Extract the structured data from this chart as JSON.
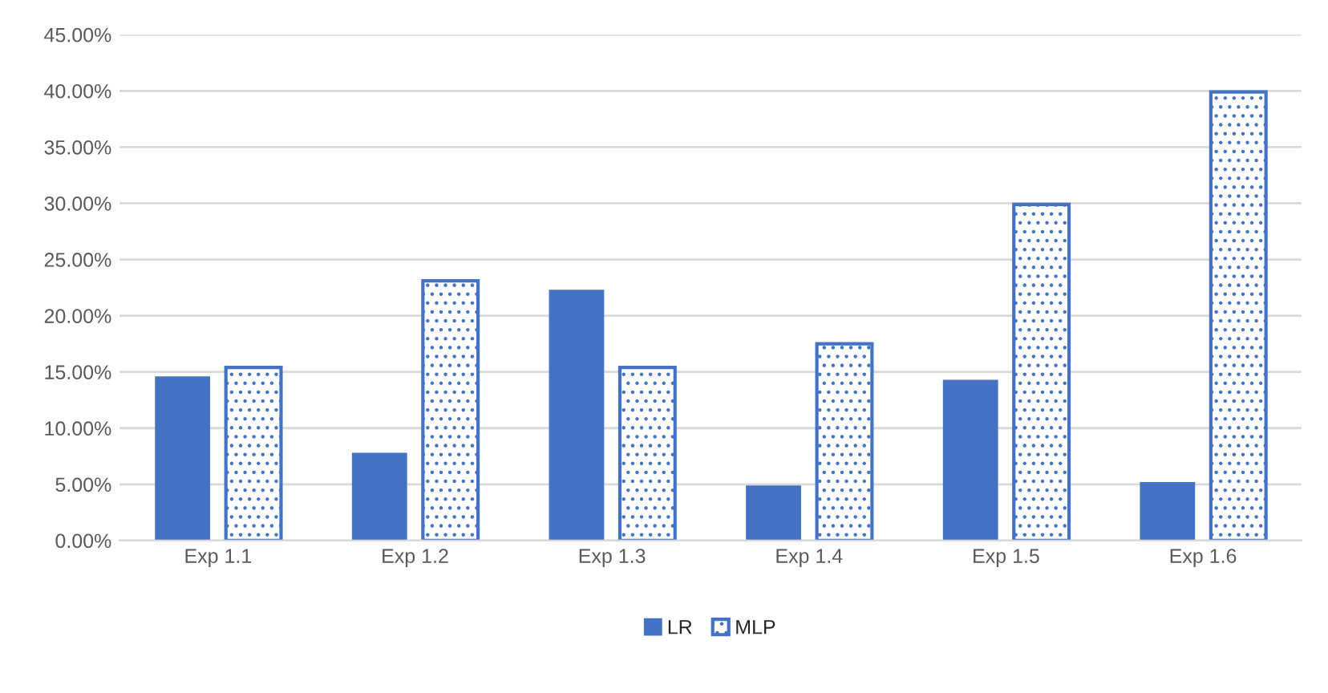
{
  "chart_data": {
    "type": "bar",
    "categories": [
      "Exp 1.1",
      "Exp 1.2",
      "Exp 1.3",
      "Exp 1.4",
      "Exp 1.5",
      "Exp 1.6"
    ],
    "series": [
      {
        "name": "LR",
        "color": "#4472c4",
        "values": [
          14.6,
          7.8,
          22.3,
          4.9,
          14.3,
          5.2
        ]
      },
      {
        "name": "MLP",
        "color": "#4472c4",
        "values": [
          15.4,
          23.1,
          15.4,
          17.5,
          29.9,
          39.9
        ]
      }
    ],
    "ylim": [
      0,
      45
    ],
    "yticks": [
      {
        "value": 0,
        "label": "0.00%"
      },
      {
        "value": 5,
        "label": "5.00%"
      },
      {
        "value": 10,
        "label": "10.00%"
      },
      {
        "value": 15,
        "label": "15.00%"
      },
      {
        "value": 20,
        "label": "20.00%"
      },
      {
        "value": 25,
        "label": "25.00%"
      },
      {
        "value": 30,
        "label": "30.00%"
      },
      {
        "value": 35,
        "label": "35.00%"
      },
      {
        "value": 40,
        "label": "40.00%"
      },
      {
        "value": 45,
        "label": "45.00%"
      }
    ],
    "grid": "y",
    "legend": "bottom"
  }
}
